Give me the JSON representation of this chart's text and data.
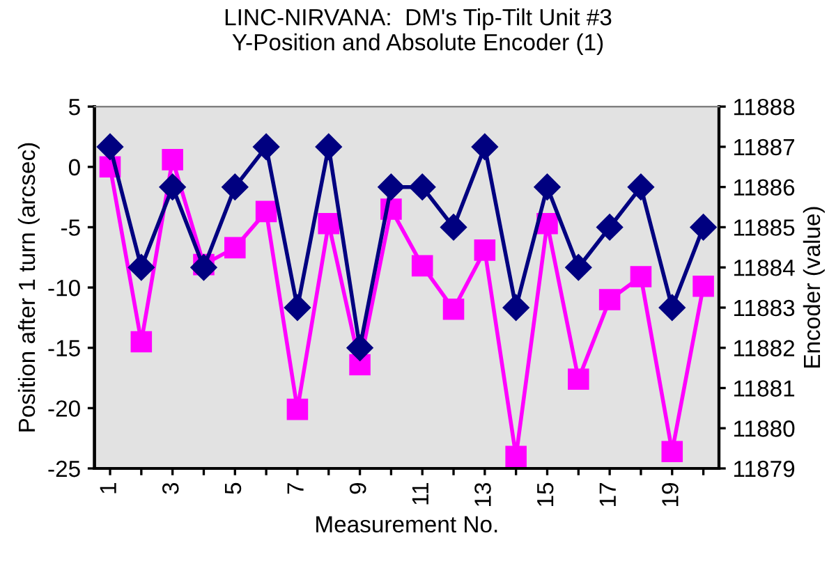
{
  "chart_data": {
    "type": "line",
    "title": "LINC-NIRVANA:  DM's Tip-Tilt Unit #3\nY-Position and Absolute Encoder (1)",
    "xlabel": "Measurement No.",
    "ylabel": "Position after 1 turn (arcsec)",
    "y2label": "Encoder (value)",
    "x": [
      1,
      2,
      3,
      4,
      5,
      6,
      7,
      8,
      9,
      10,
      11,
      12,
      13,
      14,
      15,
      16,
      17,
      18,
      19,
      20
    ],
    "xlim": [
      0.5,
      20.5
    ],
    "xticks": [
      1,
      {
        "value": 2,
        "label": null
      },
      3,
      {
        "value": 4,
        "label": null
      },
      5,
      {
        "value": 6,
        "label": null
      },
      7,
      {
        "value": 8,
        "label": null
      },
      9,
      {
        "value": 10,
        "label": null
      },
      11,
      {
        "value": 12,
        "label": null
      },
      13,
      {
        "value": 14,
        "label": null
      },
      15,
      {
        "value": 16,
        "label": null
      },
      17,
      {
        "value": 18,
        "label": null
      },
      19,
      {
        "value": 20,
        "label": null
      }
    ],
    "ylim": [
      -25,
      5
    ],
    "yticks": [
      -25,
      -20,
      -15,
      -10,
      -5,
      0,
      5
    ],
    "y2lim": [
      11879,
      11888
    ],
    "y2ticks": [
      11879,
      11880,
      11881,
      11882,
      11883,
      11884,
      11885,
      11886,
      11887,
      11888
    ],
    "grid": false,
    "legend": false,
    "line_style": "solid",
    "series": [
      {
        "color": "#ff00ff",
        "marker": "square",
        "values": [
          0,
          -14.5,
          0.6,
          -8.1,
          -6.7,
          -3.7,
          -20.1,
          -4.7,
          -16.4,
          -3.5,
          -8.2,
          -11.8,
          -6.9,
          -24,
          -4.7,
          -17.6,
          -11,
          -9.1,
          -23.6,
          -9.9
        ]
      },
      {
        "color": "#000080",
        "marker": "diamond",
        "axis": "y2",
        "values": [
          11887,
          11884,
          11886,
          11884,
          11886,
          11887,
          11883,
          11887,
          11882,
          11886,
          11886,
          11885,
          11887,
          11883,
          11886,
          11884,
          11885,
          11886,
          11883,
          11885
        ]
      }
    ]
  }
}
